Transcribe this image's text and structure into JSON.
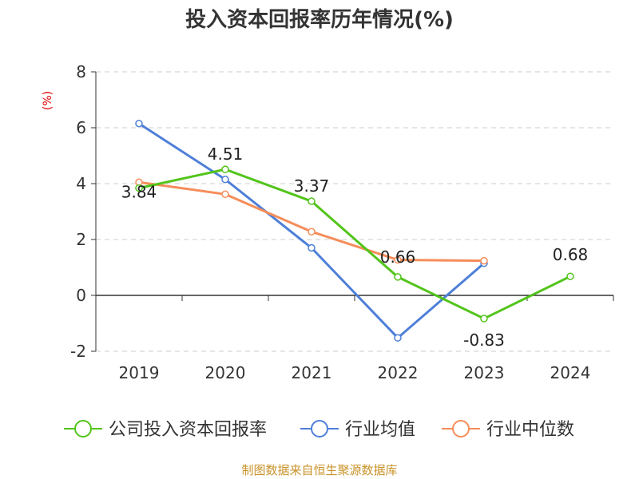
{
  "chart_data": {
    "type": "line",
    "title": "投入资本回报率历年情况(%)",
    "ylabel": "(%)",
    "xlabel": "",
    "ylim": [
      -2,
      8
    ],
    "yticks": [
      -2,
      0,
      2,
      4,
      6,
      8
    ],
    "categories": [
      "2019",
      "2020",
      "2021",
      "2022",
      "2023",
      "2024"
    ],
    "grid": true,
    "legend_position": "bottom",
    "series": [
      {
        "name": "公司投入资本回报率",
        "color": "#52c41a",
        "values": [
          3.84,
          4.51,
          3.37,
          0.66,
          -0.83,
          0.68
        ],
        "labels": [
          "3.84",
          "4.51",
          "3.37",
          "0.66",
          "-0.83",
          "0.68"
        ]
      },
      {
        "name": "行业均值",
        "color": "#4e7fd8",
        "values": [
          6.15,
          4.15,
          1.7,
          -1.52,
          1.15,
          null
        ]
      },
      {
        "name": "行业中位数",
        "color": "#f58d5a",
        "values": [
          4.05,
          3.62,
          2.28,
          1.27,
          1.24,
          null
        ]
      }
    ]
  },
  "source": "制图数据来自恒生聚源数据库",
  "colors": {
    "axis": "#333333",
    "grid": "#cccccc",
    "ylabel": "#e00000",
    "title": "#333333",
    "source": "#c9932a"
  }
}
